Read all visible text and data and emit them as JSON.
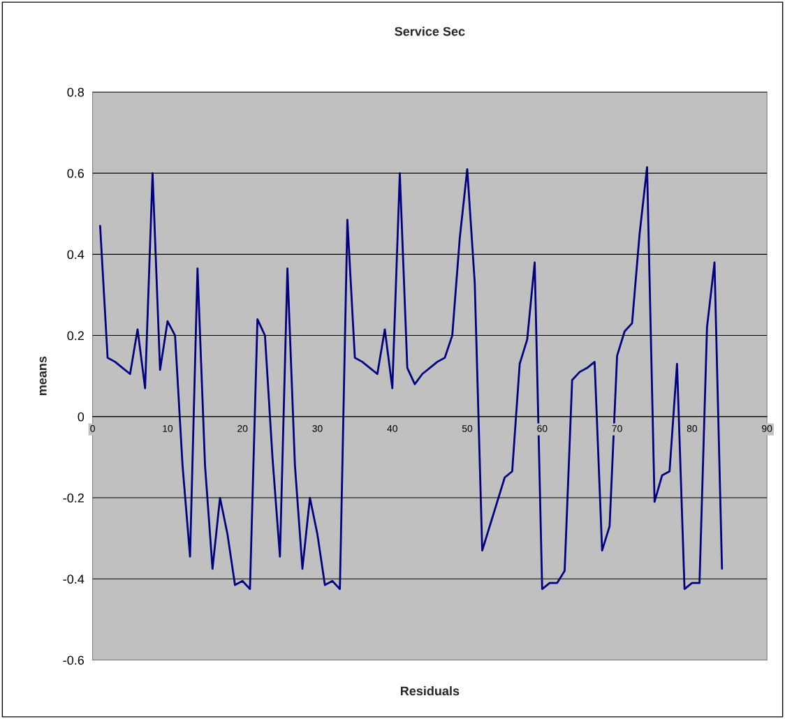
{
  "chart_data": {
    "type": "line",
    "title": "Service Sec",
    "xlabel": "Residuals",
    "ylabel": "means",
    "x": [
      1,
      2,
      3,
      4,
      5,
      6,
      7,
      8,
      9,
      10,
      11,
      12,
      13,
      14,
      15,
      16,
      17,
      18,
      19,
      20,
      21,
      22,
      23,
      24,
      25,
      26,
      27,
      28,
      29,
      30,
      31,
      32,
      33,
      34,
      35,
      36,
      37,
      38,
      39,
      40,
      41,
      42,
      43,
      44,
      45,
      46,
      47,
      48,
      49,
      50,
      51,
      52,
      53,
      54,
      55,
      56,
      57,
      58,
      59,
      60,
      61,
      62,
      63,
      64,
      65,
      66,
      67,
      68,
      69,
      70,
      71,
      72,
      73,
      74,
      75,
      76,
      77,
      78,
      79,
      80,
      81,
      82,
      83,
      84
    ],
    "series": [
      {
        "color": "#000080",
        "values": [
          0.47,
          0.145,
          0.135,
          0.12,
          0.105,
          0.215,
          0.07,
          0.6,
          0.115,
          0.235,
          0.2,
          -0.12,
          -0.345,
          0.365,
          -0.12,
          -0.375,
          -0.2,
          -0.29,
          -0.415,
          -0.405,
          -0.425,
          0.24,
          0.2,
          -0.1,
          -0.345,
          0.365,
          -0.12,
          -0.375,
          -0.2,
          -0.29,
          -0.415,
          -0.405,
          -0.425,
          0.485,
          0.145,
          0.135,
          0.12,
          0.105,
          0.215,
          0.07,
          0.6,
          0.12,
          0.08,
          0.105,
          0.12,
          0.135,
          0.145,
          0.2,
          0.44,
          0.61,
          0.33,
          -0.33,
          -0.27,
          -0.21,
          -0.15,
          -0.135,
          0.13,
          0.19,
          0.38,
          -0.425,
          -0.41,
          -0.41,
          -0.38,
          0.09,
          0.11,
          0.12,
          0.135,
          -0.33,
          -0.27,
          0.15,
          0.21,
          0.23,
          0.45,
          0.615,
          -0.21,
          -0.145,
          -0.135,
          0.13,
          -0.425,
          -0.41,
          -0.41,
          0.22,
          0.38,
          -0.375
        ]
      }
    ],
    "xlim": [
      0,
      90
    ],
    "xticks": [
      0,
      10,
      20,
      30,
      40,
      50,
      60,
      70,
      80,
      90
    ],
    "ylim": [
      -0.6,
      0.8
    ],
    "yticks": [
      {
        "value": -0.6,
        "label": "-0.6"
      },
      {
        "value": -0.4,
        "label": "-0.4"
      },
      {
        "value": -0.2,
        "label": "-0.2"
      },
      0,
      0.2,
      0.4,
      0.6,
      0.8
    ],
    "grid": "y",
    "legend": false,
    "marker": "none",
    "line_style": "solid"
  }
}
